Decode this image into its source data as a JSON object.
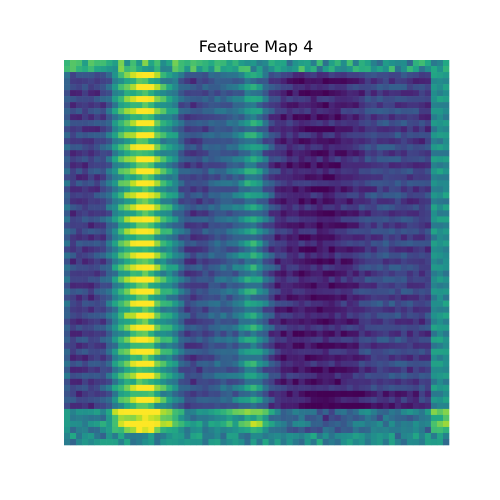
{
  "chart_data": {
    "type": "heatmap",
    "title": "Feature Map 4",
    "colormap": "viridis",
    "axes_visible": false,
    "grid": false,
    "rows": 64,
    "cols": 64,
    "description_of_pattern": "",
    "value_range": [
      0,
      1
    ]
  }
}
